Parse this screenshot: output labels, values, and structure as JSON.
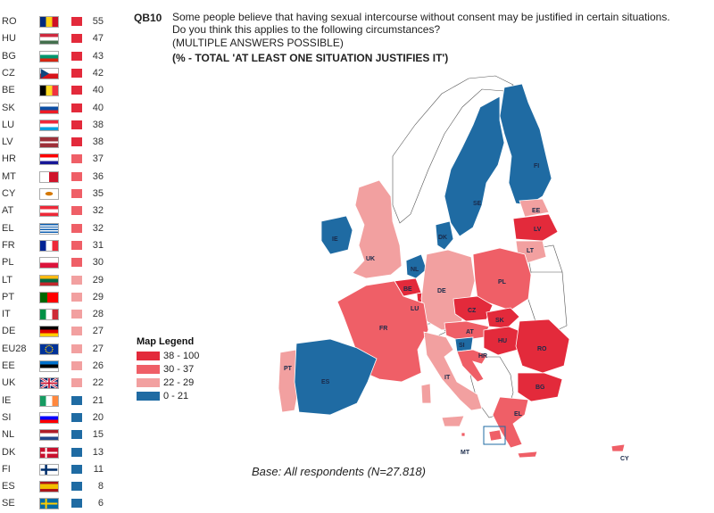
{
  "header": {
    "question_id": "QB10",
    "question": "Some people believe that having sexual intercourse without consent may be justified in certain situations. Do you think this applies to the following circumstances?",
    "note": "(MULTIPLE ANSWERS POSSIBLE)",
    "subtitle": "(% - TOTAL 'AT LEAST ONE SITUATION JUSTIFIES IT')"
  },
  "colors": {
    "band_1": "#e32a3b",
    "band_2": "#ef5f67",
    "band_3": "#f2a0a0",
    "band_4": "#1f6ba3"
  },
  "legend": {
    "title": "Map Legend",
    "items": [
      {
        "label": "38 - 100",
        "color": "#e32a3b"
      },
      {
        "label": "30 - 37",
        "color": "#ef5f67"
      },
      {
        "label": "22 - 29",
        "color": "#f2a0a0"
      },
      {
        "label": "0 - 21",
        "color": "#1f6ba3"
      }
    ]
  },
  "chart_data": {
    "type": "map",
    "title": "(% - TOTAL 'AT LEAST ONE SITUATION JUSTIFIES IT')",
    "categories": [
      "RO",
      "HU",
      "BG",
      "CZ",
      "BE",
      "SK",
      "LU",
      "LV",
      "HR",
      "MT",
      "CY",
      "AT",
      "EL",
      "FR",
      "PL",
      "LT",
      "PT",
      "IT",
      "DE",
      "EU28",
      "EE",
      "UK",
      "IE",
      "SI",
      "NL",
      "DK",
      "FI",
      "ES",
      "SE"
    ],
    "values": [
      55,
      47,
      43,
      42,
      40,
      40,
      38,
      38,
      37,
      36,
      35,
      32,
      32,
      31,
      30,
      29,
      29,
      28,
      27,
      27,
      26,
      22,
      21,
      20,
      15,
      13,
      11,
      8,
      6
    ],
    "bins": [
      [
        38,
        100
      ],
      [
        30,
        37
      ],
      [
        22,
        29
      ],
      [
        0,
        21
      ]
    ]
  },
  "map_labels": [
    "FI",
    "SE",
    "EE",
    "LV",
    "LT",
    "DK",
    "IE",
    "UK",
    "NL",
    "BE",
    "LU",
    "DE",
    "PL",
    "CZ",
    "SK",
    "AT",
    "HU",
    "RO",
    "SI",
    "HR",
    "BG",
    "FR",
    "PT",
    "ES",
    "IT",
    "EL",
    "MT",
    "CY"
  ],
  "base_text": "Base: All respondents (N=27.818)"
}
